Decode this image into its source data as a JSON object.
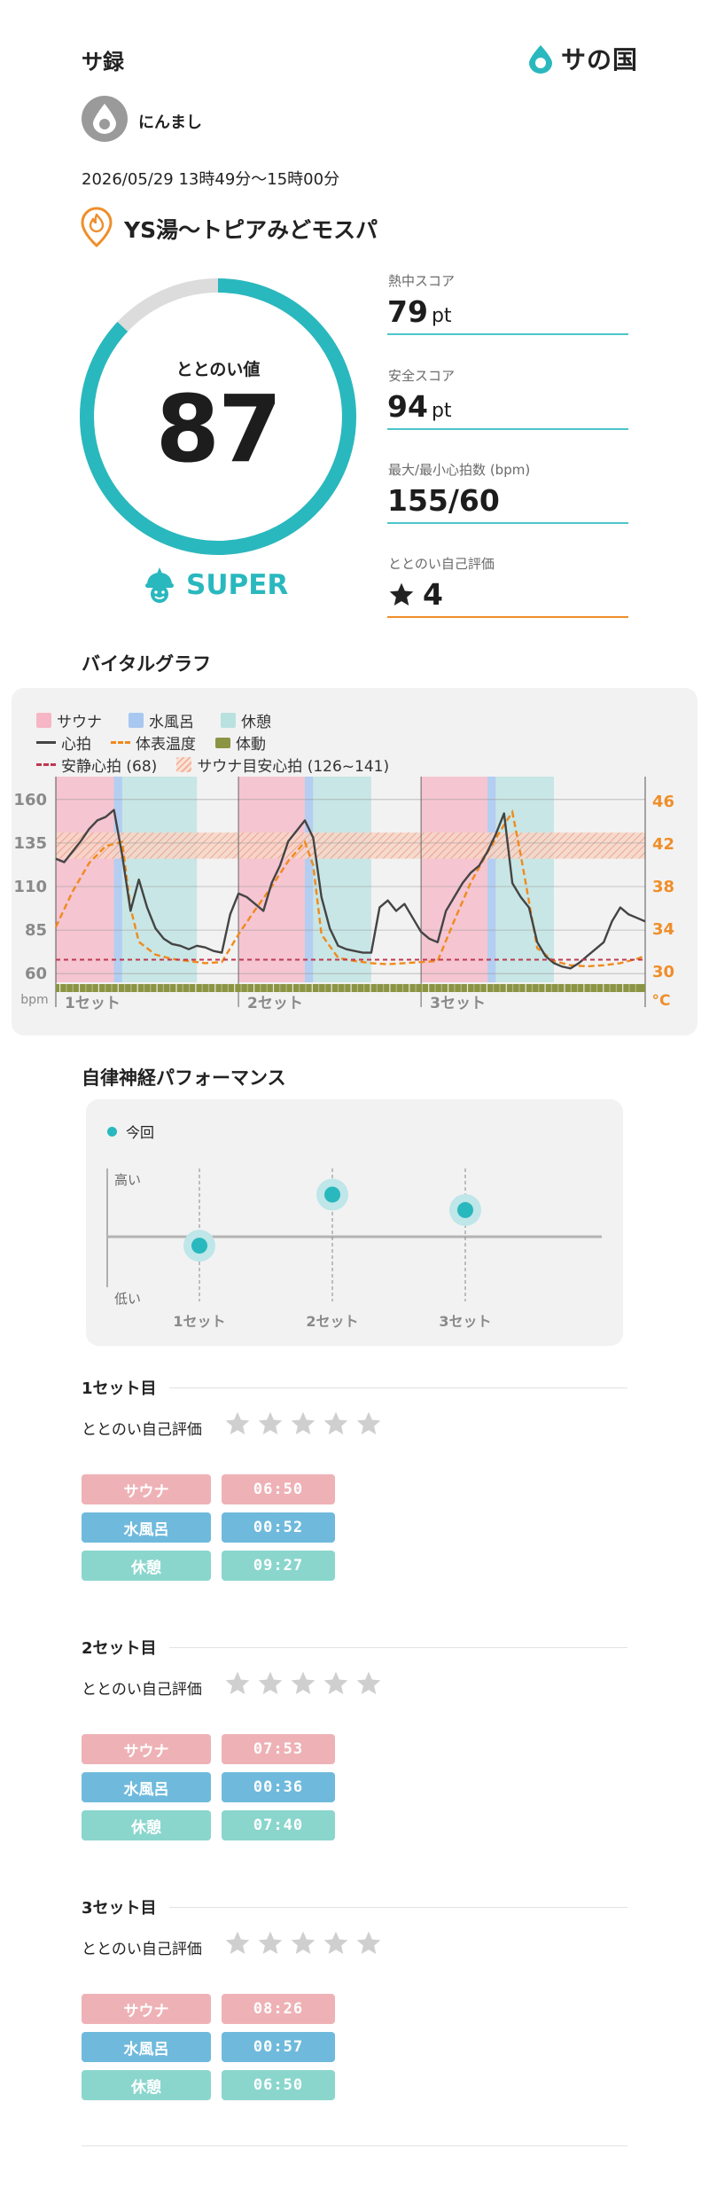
{
  "header": {
    "app_title": "サ録",
    "brand": "サの国"
  },
  "user": {
    "name": "にんまし"
  },
  "session": {
    "datetime": "2026/05/29 13時49分〜15時00分",
    "facility": "YS湯〜トピアみどモスパ"
  },
  "score": {
    "label": "ととのい値",
    "value": "87",
    "fraction": 0.87,
    "rank": "SUPER",
    "ring_color": "#29b8be",
    "track_color": "#dcdcdc"
  },
  "stats": [
    {
      "label": "熱中スコア",
      "value": "79",
      "unit": "pt"
    },
    {
      "label": "安全スコア",
      "value": "94",
      "unit": "pt"
    },
    {
      "label": "最大/最小心拍数 (bpm)",
      "value": "155/60",
      "unit": ""
    },
    {
      "label": "ととのい自己評価",
      "value": "4",
      "unit": "",
      "icon": "star-icon"
    }
  ],
  "vital": {
    "title": "バイタルグラフ",
    "legend": {
      "sauna": "サウナ",
      "water": "水風呂",
      "rest": "休憩",
      "hr": "心拍",
      "temp": "体表温度",
      "movement": "体動",
      "resting_hr": "安静心拍 (68)",
      "target_hr": "サウナ目安心拍 (126~141)"
    },
    "colors": {
      "sauna": "#f6b6c6",
      "water": "#a8c8f0",
      "rest": "#b9e1e0",
      "hr": "#444444",
      "temp": "#f08a1c",
      "movement": "#8b9443",
      "resting": "#c0384f"
    }
  },
  "chart_data": {
    "type": "line",
    "y_left": {
      "unit": "bpm",
      "ticks": [
        "160",
        "135",
        "110",
        "85",
        "60"
      ],
      "range": [
        55,
        165
      ]
    },
    "y_right": {
      "unit": "°C",
      "ticks": [
        "46",
        "42",
        "38",
        "34",
        "30"
      ],
      "range": [
        29,
        47
      ]
    },
    "x_labels": [
      "1セット",
      "2セット",
      "3セット"
    ],
    "resting_hr": 68,
    "target_hr": [
      126,
      141
    ],
    "series": [
      {
        "name": "心拍",
        "t": [
          0,
          1,
          2,
          3,
          4,
          5,
          6,
          7,
          8,
          9,
          10,
          11,
          12,
          13,
          14,
          15,
          16,
          17,
          18,
          19,
          20,
          21,
          22,
          23,
          24,
          25,
          26,
          27,
          28,
          29,
          30,
          31,
          32,
          33,
          34,
          35,
          36,
          37,
          38,
          39,
          40,
          41,
          42,
          43,
          44,
          45,
          46,
          47,
          48,
          49,
          50,
          51,
          52,
          53,
          54,
          55,
          56,
          57,
          58,
          59,
          60,
          61,
          62,
          63,
          64,
          65,
          66,
          67,
          68,
          69,
          70,
          71
        ],
        "values": [
          126,
          124,
          130,
          136,
          143,
          148,
          150,
          154,
          128,
          96,
          114,
          98,
          86,
          80,
          77,
          76,
          74,
          76,
          75,
          73,
          72,
          94,
          106,
          104,
          100,
          96,
          112,
          122,
          136,
          142,
          148,
          138,
          104,
          86,
          76,
          74,
          73,
          72,
          72,
          98,
          102,
          96,
          100,
          92,
          84,
          80,
          78,
          96,
          104,
          112,
          118,
          122,
          130,
          140,
          152,
          112,
          104,
          98,
          78,
          70,
          66,
          64,
          63,
          66,
          70,
          74,
          78,
          90,
          98,
          94,
          92,
          90
        ]
      },
      {
        "name": "体表温度",
        "t": [
          0,
          2,
          4,
          6,
          8,
          9,
          10,
          12,
          14,
          16,
          18,
          20,
          22,
          24,
          26,
          28,
          30,
          31,
          32,
          34,
          36,
          38,
          40,
          42,
          44,
          46,
          48,
          50,
          52,
          54,
          55,
          56,
          58,
          60,
          62,
          64,
          66,
          68,
          70,
          71
        ],
        "values": [
          34.2,
          37.5,
          40.2,
          41.8,
          42.2,
          36,
          32.8,
          31.6,
          31.2,
          31.0,
          30.8,
          30.9,
          33.5,
          35.8,
          38.0,
          40.4,
          42.2,
          40,
          33.5,
          31.3,
          31.0,
          30.8,
          30.7,
          30.8,
          30.9,
          31.0,
          34.8,
          38.4,
          41.2,
          43.8,
          45.0,
          41,
          32.2,
          31.0,
          30.6,
          30.5,
          30.6,
          30.8,
          31.2,
          31.5
        ]
      }
    ],
    "phases": [
      {
        "type": "sauna",
        "start": 0,
        "end": 7
      },
      {
        "type": "water",
        "start": 7,
        "end": 8
      },
      {
        "type": "rest",
        "start": 8,
        "end": 17
      },
      {
        "type": "sauna",
        "start": 22,
        "end": 30
      },
      {
        "type": "water",
        "start": 30,
        "end": 31
      },
      {
        "type": "rest",
        "start": 31,
        "end": 38
      },
      {
        "type": "sauna",
        "start": 44,
        "end": 52
      },
      {
        "type": "water",
        "start": 52,
        "end": 53
      },
      {
        "type": "rest",
        "start": 53,
        "end": 60
      }
    ],
    "set_starts": [
      0,
      22,
      44
    ]
  },
  "performance": {
    "title": "自律神経パフォーマンス",
    "legend": "今回",
    "high_label": "高い",
    "low_label": "低い",
    "sets": [
      {
        "label": "1セット",
        "level": 0.35
      },
      {
        "label": "2セット",
        "level": 0.78
      },
      {
        "label": "3セット",
        "level": 0.65
      }
    ]
  },
  "sets": [
    {
      "title": "1セット目",
      "eval_label": "ととのい自己評価",
      "rating": 0,
      "labels": [
        "サウナ",
        "水風呂",
        "休憩"
      ],
      "times": [
        "06:50",
        "00:52",
        "09:27"
      ]
    },
    {
      "title": "2セット目",
      "eval_label": "ととのい自己評価",
      "rating": 0,
      "labels": [
        "サウナ",
        "水風呂",
        "休憩"
      ],
      "times": [
        "07:53",
        "00:36",
        "07:40"
      ]
    },
    {
      "title": "3セット目",
      "eval_label": "ととのい自己評価",
      "rating": 0,
      "labels": [
        "サウナ",
        "水風呂",
        "休憩"
      ],
      "times": [
        "08:26",
        "00:57",
        "06:50"
      ]
    }
  ]
}
